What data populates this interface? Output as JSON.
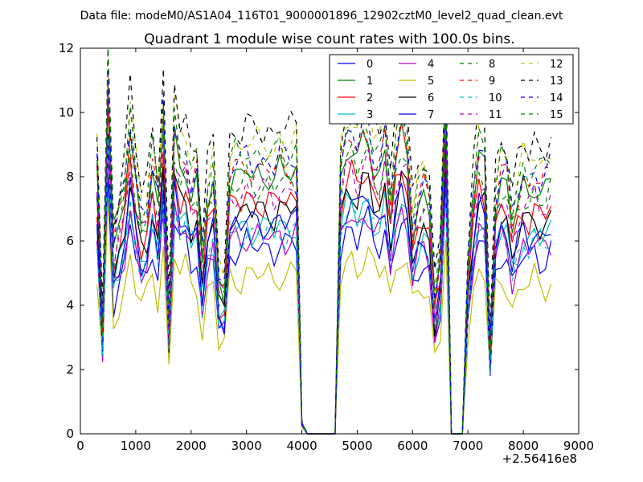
{
  "suptitle": "Data file: modeM0/AS1A04_116T01_9000001896_12902cztM0_level2_quad_clean.evt",
  "chart_data": {
    "type": "line",
    "title": "Quadrant 1 module wise count rates with 100.0s bins.",
    "xlabel": "",
    "ylabel": "",
    "offset_label": "+2.56416e8",
    "xlim": [
      0,
      9000
    ],
    "ylim": [
      0,
      12
    ],
    "xticks": [
      0,
      1000,
      2000,
      3000,
      4000,
      5000,
      6000,
      7000,
      8000,
      9000
    ],
    "yticks": [
      0,
      2,
      4,
      6,
      8,
      10,
      12
    ],
    "legend_location": "upper-right",
    "legend_columns": 4,
    "x": [
      300,
      400,
      500,
      600,
      700,
      800,
      900,
      1000,
      1100,
      1200,
      1300,
      1400,
      1500,
      1600,
      1700,
      1800,
      1900,
      2000,
      2100,
      2200,
      2300,
      2400,
      2500,
      2600,
      2700,
      2800,
      2900,
      3000,
      3100,
      3200,
      3300,
      3400,
      3500,
      3600,
      3700,
      3800,
      3900,
      4000,
      4100,
      4200,
      4300,
      4400,
      4500,
      4600,
      4700,
      4800,
      4900,
      5000,
      5100,
      5200,
      5300,
      5400,
      5500,
      5600,
      5700,
      5800,
      5900,
      6000,
      6100,
      6200,
      6300,
      6400,
      6500,
      6600,
      6700,
      6800,
      6900,
      7000,
      7100,
      7200,
      7300,
      7400,
      7500,
      7600,
      7700,
      7800,
      7900,
      8000,
      8100,
      8200,
      8300,
      8400,
      8500
    ],
    "base_profile": [
      7.4,
      3.1,
      10.4,
      5.3,
      6.0,
      6.8,
      8.5,
      7.0,
      6.0,
      6.3,
      7.6,
      6.4,
      8.9,
      3.0,
      8.5,
      7.6,
      7.8,
      6.9,
      7.2,
      4.8,
      6.6,
      7.1,
      4.2,
      4.1,
      7.3,
      7.4,
      7.3,
      7.6,
      7.4,
      7.5,
      7.4,
      7.5,
      7.3,
      7.6,
      7.4,
      7.5,
      7.6,
      0.3,
      0,
      0,
      0,
      0,
      0,
      0,
      7.3,
      8.1,
      8.3,
      7.8,
      8.3,
      8.4,
      7.6,
      7.5,
      8.2,
      6.4,
      7.8,
      8.5,
      8.0,
      5.8,
      6.6,
      6.9,
      6.5,
      3.7,
      4.8,
      9.4,
      0,
      0,
      0,
      4.6,
      6.6,
      7.9,
      7.6,
      2.5,
      6.6,
      7.3,
      7.1,
      5.9,
      6.6,
      7.1,
      6.9,
      7.3,
      7.0,
      7.0,
      7.3
    ],
    "series": [
      {
        "name": "0",
        "color": "#0000ff",
        "dash": "solid",
        "scale": 0.78
      },
      {
        "name": "1",
        "color": "#007f00",
        "dash": "solid",
        "scale": 1.08
      },
      {
        "name": "2",
        "color": "#ff0000",
        "dash": "solid",
        "scale": 0.97
      },
      {
        "name": "3",
        "color": "#00bfbf",
        "dash": "solid",
        "scale": 0.86
      },
      {
        "name": "4",
        "color": "#bf00bf",
        "dash": "solid",
        "scale": 0.82
      },
      {
        "name": "5",
        "color": "#bfbf00",
        "dash": "solid",
        "scale": 0.66
      },
      {
        "name": "6",
        "color": "#000000",
        "dash": "solid",
        "scale": 0.93
      },
      {
        "name": "7",
        "color": "#0000ff",
        "dash": "solid",
        "scale": 0.88
      },
      {
        "name": "8",
        "color": "#007f00",
        "dash": "dashed",
        "scale": 1.04
      },
      {
        "name": "9",
        "color": "#ff0000",
        "dash": "dashed",
        "scale": 1.11
      },
      {
        "name": "10",
        "color": "#00bfbf",
        "dash": "dashed",
        "scale": 0.84
      },
      {
        "name": "11",
        "color": "#bf00bf",
        "dash": "dashed",
        "scale": 1.01
      },
      {
        "name": "12",
        "color": "#bfbf00",
        "dash": "dashed",
        "scale": 1.21
      },
      {
        "name": "13",
        "color": "#000000",
        "dash": "dashed",
        "scale": 1.27
      },
      {
        "name": "14",
        "color": "#0000ff",
        "dash": "dashed",
        "scale": 1.14
      },
      {
        "name": "15",
        "color": "#007f00",
        "dash": "dashed",
        "scale": 1.17
      }
    ]
  }
}
